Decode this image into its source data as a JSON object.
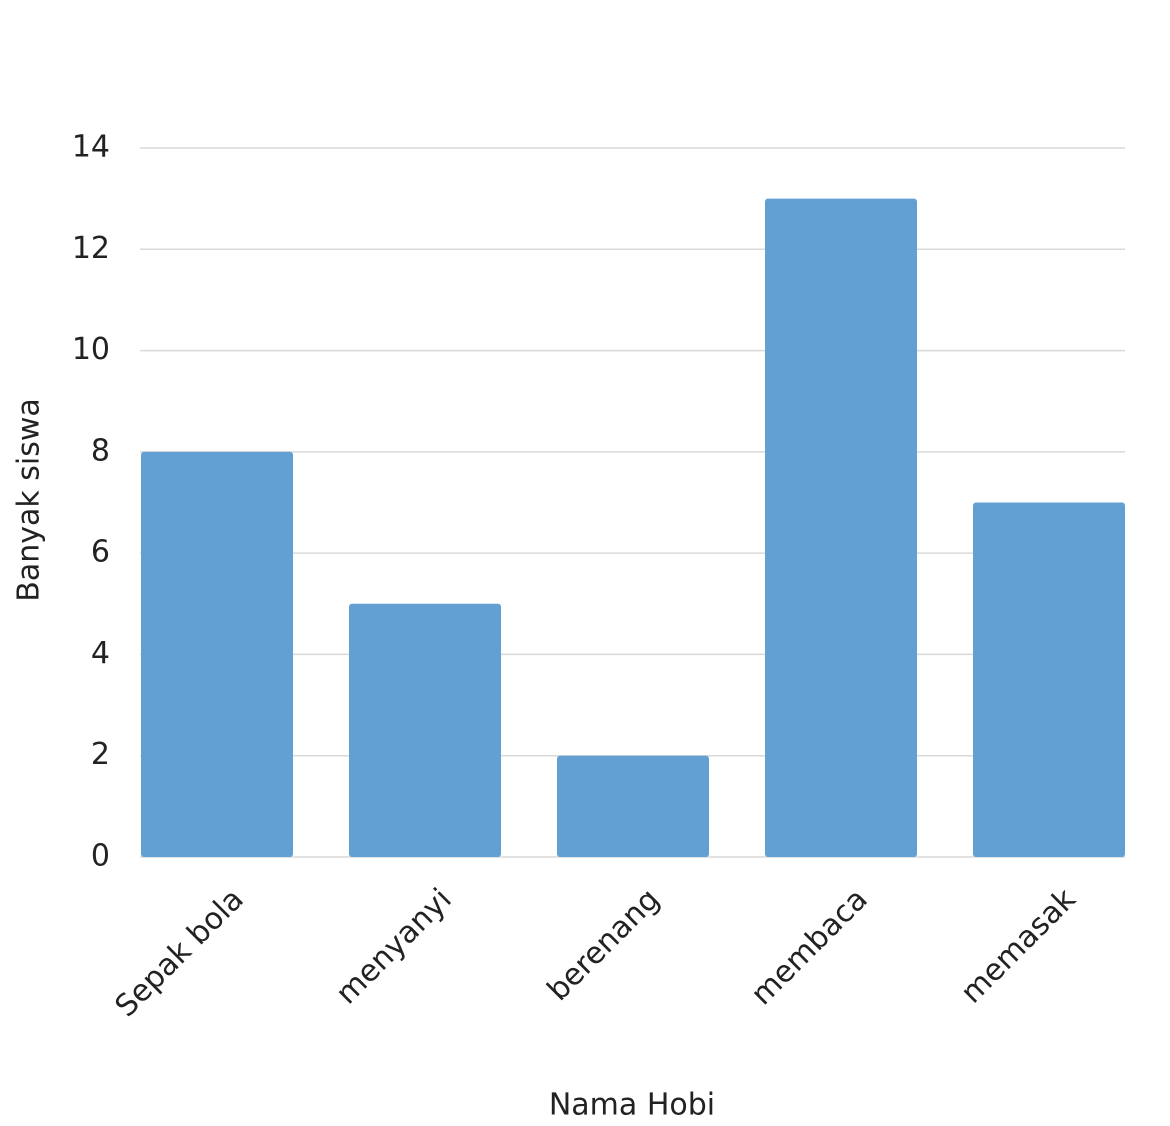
{
  "chart_data": {
    "type": "bar",
    "categories": [
      "Sepak bola",
      "menyanyi",
      "berenang",
      "membaca",
      "memasak"
    ],
    "values": [
      8,
      5,
      2,
      13,
      7
    ],
    "color": "#62a0d3",
    "ylim": [
      0,
      14
    ],
    "yticks": [
      0,
      2,
      4,
      6,
      8,
      10,
      12,
      14
    ],
    "grid": true,
    "ylabel": "Banyak siswa",
    "xlabel": "Nama Hobi"
  }
}
